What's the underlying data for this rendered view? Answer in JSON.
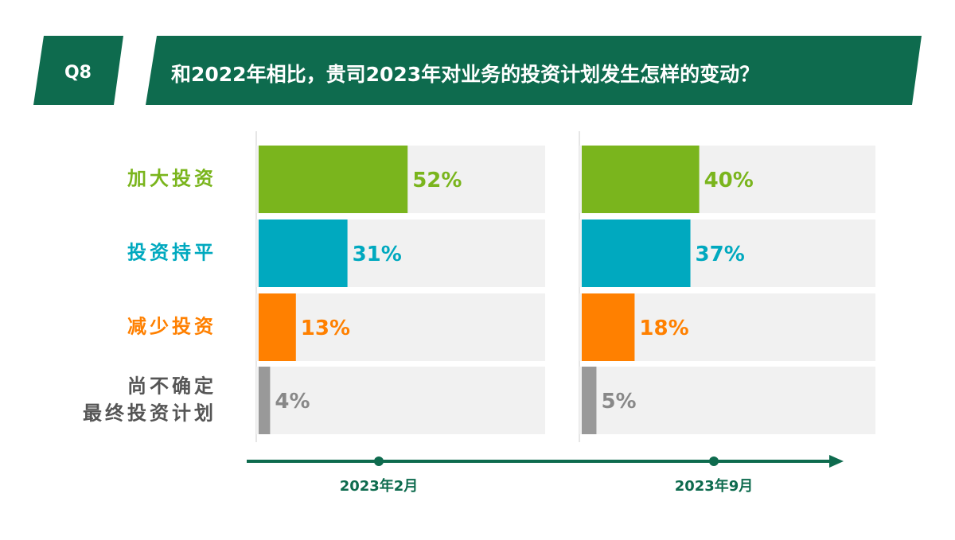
{
  "header": {
    "badge": "Q8",
    "title": "和2022年相比，贵司2023年对业务的投资计划发生怎样的变动？"
  },
  "chart_data": {
    "type": "bar",
    "orientation": "horizontal",
    "categories": [
      "加大投资",
      "投资持平",
      "减少投资",
      "尚不确定\n最终投资计划"
    ],
    "colors": [
      "#7ab51d",
      "#00a9bf",
      "#ff8000",
      "#999999"
    ],
    "xlim": [
      0,
      100
    ],
    "series": [
      {
        "name": "2023年2月",
        "values": [
          52,
          31,
          13,
          4
        ],
        "value_labels": [
          "52%",
          "31%",
          "13%",
          "4%"
        ]
      },
      {
        "name": "2023年9月",
        "values": [
          40,
          37,
          18,
          5
        ],
        "value_labels": [
          "40%",
          "37%",
          "18%",
          "5%"
        ]
      }
    ]
  }
}
